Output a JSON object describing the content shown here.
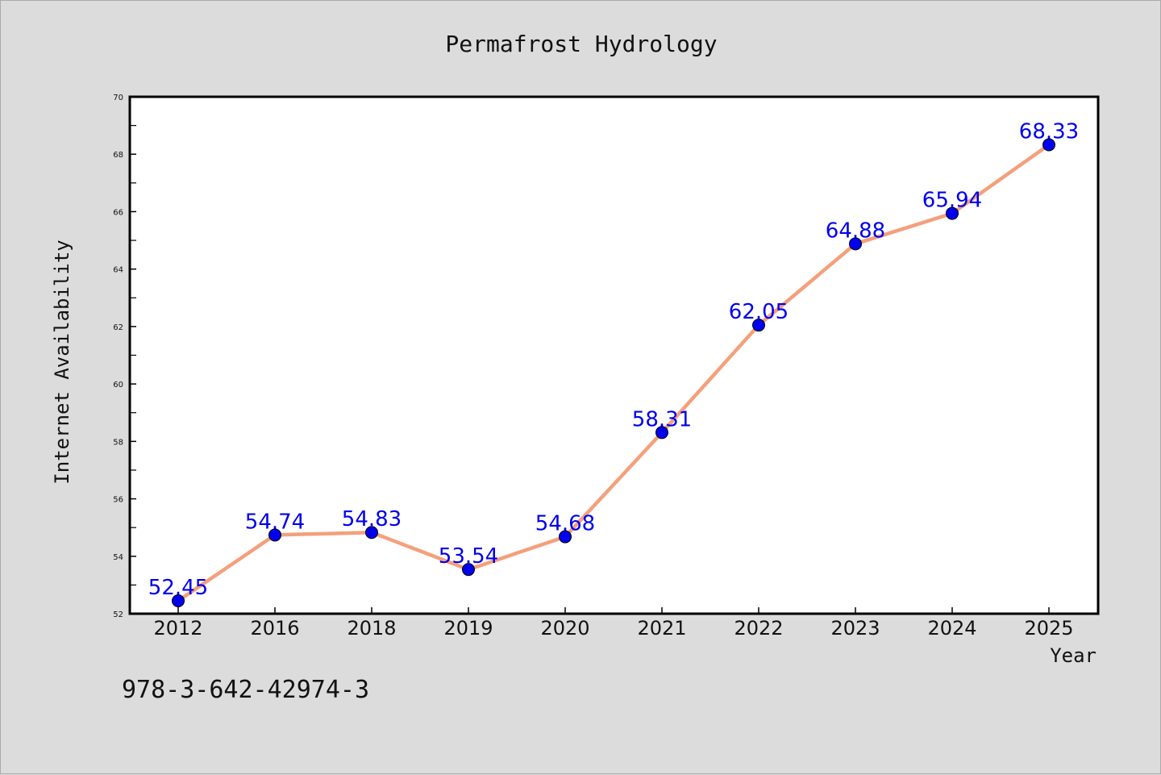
{
  "chart_data": {
    "type": "line",
    "title": "Permafrost Hydrology",
    "xlabel": "Year",
    "ylabel": "Internet Availability",
    "categories": [
      "2012",
      "2016",
      "2018",
      "2019",
      "2020",
      "2021",
      "2022",
      "2023",
      "2024",
      "2025"
    ],
    "series": [
      {
        "values": [
          52.45,
          54.74,
          54.83,
          53.54,
          54.68,
          58.31,
          62.05,
          64.88,
          65.94,
          68.33
        ]
      }
    ],
    "data_labels": [
      "52.45",
      "54.74",
      "54.83",
      "53.54",
      "54.68",
      "58.31",
      "62.05",
      "64.88",
      "65.94",
      "68.33"
    ],
    "ylim": [
      52,
      70
    ],
    "yticks": [
      "52",
      "54",
      "56",
      "58",
      "60",
      "62",
      "64",
      "66",
      "68",
      "70"
    ],
    "grid": false,
    "colors": {
      "line": "#f4a07c",
      "marker": "#0000ee",
      "data_label": "#0000ee",
      "background": "#dcdcdc",
      "plot_background": "#ffffff"
    }
  },
  "footer": {
    "text": "978-3-642-42974-3"
  }
}
